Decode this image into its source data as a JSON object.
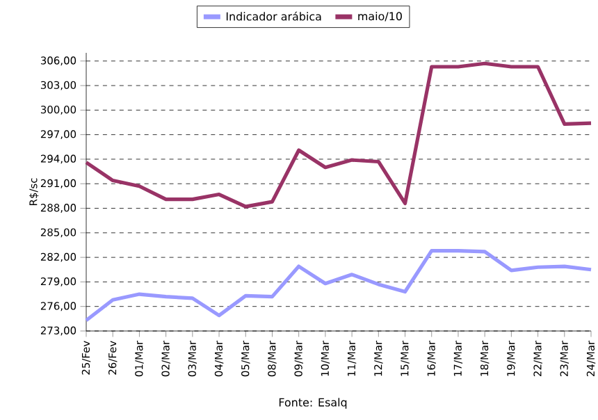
{
  "chart_data": {
    "type": "line",
    "categories": [
      "25/Fev",
      "26/Fev",
      "01/Mar",
      "02/Mar",
      "03/Mar",
      "04/Mar",
      "05/Mar",
      "08/Mar",
      "09/Mar",
      "10/Mar",
      "11/Mar",
      "12/Mar",
      "15/Mar",
      "16/Mar",
      "17/Mar",
      "18/Mar",
      "19/Mar",
      "22/Mar",
      "23/Mar",
      "24/Mar"
    ],
    "series": [
      {
        "name": "Indicador arábica",
        "color": "#9999ff",
        "values": [
          274.3,
          276.8,
          277.5,
          277.2,
          277.0,
          274.9,
          277.3,
          277.2,
          280.9,
          278.8,
          279.9,
          278.7,
          277.8,
          282.8,
          282.8,
          282.7,
          280.4,
          280.8,
          280.9,
          280.5
        ]
      },
      {
        "name": "maio/10",
        "color": "#993366",
        "values": [
          293.6,
          291.4,
          290.7,
          289.1,
          289.1,
          289.7,
          288.2,
          288.8,
          295.1,
          293.0,
          293.9,
          293.7,
          288.6,
          305.3,
          305.3,
          305.7,
          305.3,
          305.3,
          298.3,
          298.4
        ]
      }
    ],
    "ylabel": "R$/sc",
    "ylim": [
      273,
      307
    ],
    "yticks": [
      {
        "value": 273,
        "label": "273,00"
      },
      {
        "value": 276,
        "label": "276,00"
      },
      {
        "value": 279,
        "label": "279,00"
      },
      {
        "value": 282,
        "label": "282,00"
      },
      {
        "value": 285,
        "label": "285,00"
      },
      {
        "value": 288,
        "label": "288,00"
      },
      {
        "value": 291,
        "label": "291,00"
      },
      {
        "value": 294,
        "label": "294,00"
      },
      {
        "value": 297,
        "label": "297,00"
      },
      {
        "value": 300,
        "label": "300,00"
      },
      {
        "value": 303,
        "label": "303,00"
      },
      {
        "value": 306,
        "label": "306,00"
      }
    ],
    "grid": "y",
    "legend": "top",
    "marker": "none",
    "line_style": "solid",
    "annotations": [
      "Fonte: Esalq"
    ]
  }
}
